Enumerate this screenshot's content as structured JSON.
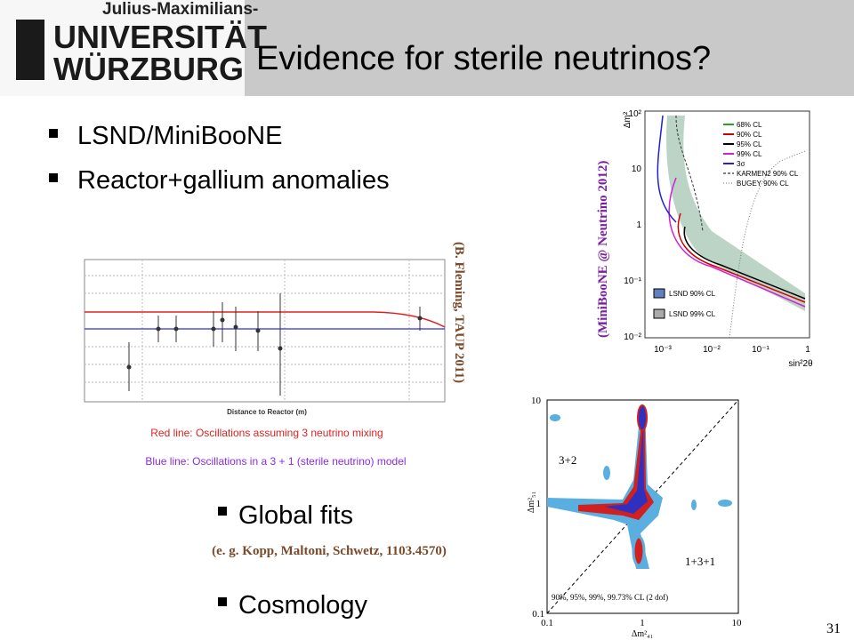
{
  "header": {
    "logo": [
      "Julius-Maximilians-",
      "UNIVERSITÄT",
      "WÜRZBURG"
    ],
    "title": "Evidence for sterile neutrinos?"
  },
  "bullets": [
    "LSND/MiniBooNE",
    "Reactor+gallium anomalies",
    "Global fits",
    "Cosmology"
  ],
  "citations": {
    "reactor": "(B. Fleming, TAUP 2011)",
    "miniboone": "(MiniBooNE @ Neutrino 2012)",
    "global": "(e. g. Kopp, Maltoni, Schwetz, 1103.4570)"
  },
  "reactor_figure": {
    "x_label": "Distance to Reactor (m)",
    "caption_red": "Red line: Oscillations assuming 3 neutrino mixing",
    "caption_blue": "Blue line:  Oscillations in a 3 + 1 (sterile neutrino) model"
  },
  "miniboone_figure": {
    "y_label": "Δm²",
    "x_label": "sin²2θ",
    "yticks": [
      "10²",
      "10",
      "1",
      "10⁻¹",
      "10⁻²"
    ],
    "xticks": [
      "10⁻³",
      "10⁻²",
      "10⁻¹",
      "1"
    ],
    "legend": [
      "68% CL",
      "90% CL",
      "95% CL",
      "99% CL",
      "3σ",
      "KARMEN2 90% CL",
      "BUGEY 90% CL"
    ],
    "lsnd_legend": [
      "LSND 90% CL",
      "LSND 99% CL"
    ]
  },
  "global_figure": {
    "y_label": "Δm²₅₁",
    "x_label": "Δm²₄₁",
    "yticks": [
      "10",
      "1",
      "0.1"
    ],
    "xticks": [
      "0.1",
      "1",
      "10"
    ],
    "label_32": "3+2",
    "label_131": "1+3+1",
    "cl_note": "90%, 95%, 99%, 99.73% CL (2 dof)"
  },
  "page_number": "31"
}
